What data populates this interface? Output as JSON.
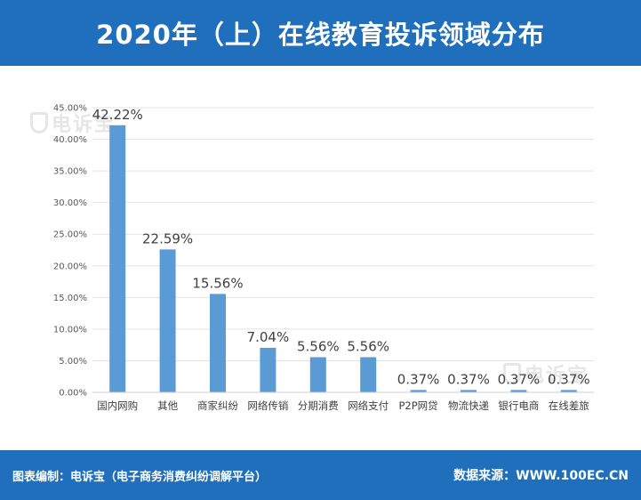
{
  "header": {
    "title": "2020年（上）在线教育投诉领域分布"
  },
  "watermark": {
    "text": "电诉宝"
  },
  "footer": {
    "left": "图表编制：电诉宝（电子商务消费纠纷调解平台）",
    "right": "数据来源：WWW.100EC.CN"
  },
  "colors": {
    "brand": "#1f6fbd",
    "bar": "#5b9bd5"
  },
  "chart_data": {
    "type": "bar",
    "title": "2020年（上）在线教育投诉领域分布",
    "categories": [
      "国内网购",
      "其他",
      "商家纠纷",
      "网络传销",
      "分期消费",
      "网络支付",
      "P2P网贷",
      "物流快递",
      "银行电商",
      "在线差旅"
    ],
    "values": [
      42.22,
      22.59,
      15.56,
      7.04,
      5.56,
      5.56,
      0.37,
      0.37,
      0.37,
      0.37
    ],
    "data_labels": [
      "42.22%",
      "22.59%",
      "15.56%",
      "7.04%",
      "5.56%",
      "5.56%",
      "0.37%",
      "0.37%",
      "0.37%",
      "0.37%"
    ],
    "yticks": [
      "0.00%",
      "5.00%",
      "10.00%",
      "15.00%",
      "20.00%",
      "25.00%",
      "30.00%",
      "35.00%",
      "40.00%",
      "45.00%"
    ],
    "ylim": [
      0,
      45
    ],
    "grid": true,
    "legend": "none"
  }
}
